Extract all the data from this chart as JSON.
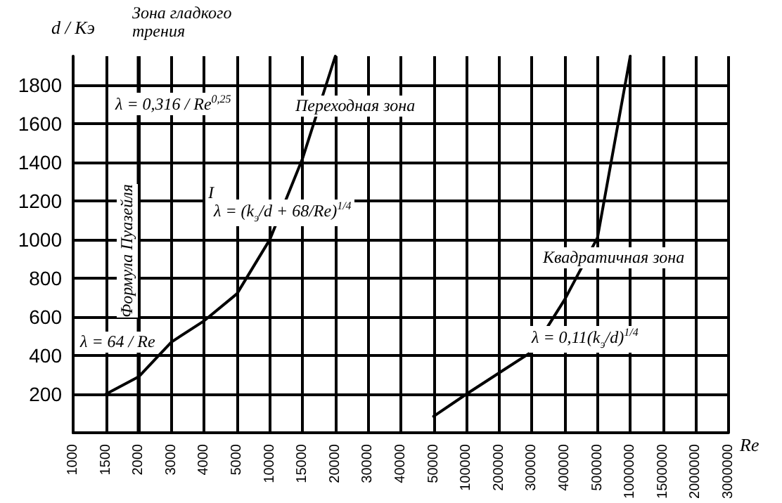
{
  "chart_data": {
    "type": "line",
    "xlabel": "Re",
    "ylabel": "d / Kэ",
    "categories": [
      "1000",
      "1500",
      "2000",
      "3000",
      "4000",
      "5000",
      "10000",
      "15000",
      "20000",
      "30000",
      "40000",
      "50000",
      "100000",
      "200000",
      "300000",
      "400000",
      "500000",
      "1000000",
      "1500000",
      "2000000",
      "3000000"
    ],
    "series": [
      {
        "color": "#000000",
        "values": [
          null,
          200,
          290,
          470,
          580,
          720,
          1000,
          1420,
          1950,
          null,
          null,
          null,
          null,
          null,
          null,
          null,
          null,
          null,
          null,
          null,
          null
        ]
      },
      {
        "color": "#000000",
        "values": [
          null,
          null,
          null,
          null,
          null,
          null,
          null,
          null,
          null,
          null,
          null,
          85,
          200,
          310,
          420,
          690,
          1010,
          1950,
          null,
          null,
          null
        ]
      }
    ],
    "ylim": [
      0,
      1950
    ],
    "yticks": [
      200,
      400,
      600,
      800,
      1000,
      1200,
      1400,
      1600,
      1800
    ],
    "grid": true,
    "marker": "none",
    "line_style": "solid",
    "ref_lines": [
      {
        "axis": "x",
        "value": "2000",
        "label": "Формула Пуазейля"
      }
    ],
    "annotations": [
      "Зона гладкого трения",
      "λ = 0,316 / Re$^{0,25}$",
      "Переходная зона",
      "I",
      "λ = (k$_{э}$/d + 68/Re)$^{1/4}$",
      "Квадратичная зона",
      "λ = 0,11(k$_{э}$/d)$^{1/4}$",
      "λ = 64 / Re"
    ]
  }
}
